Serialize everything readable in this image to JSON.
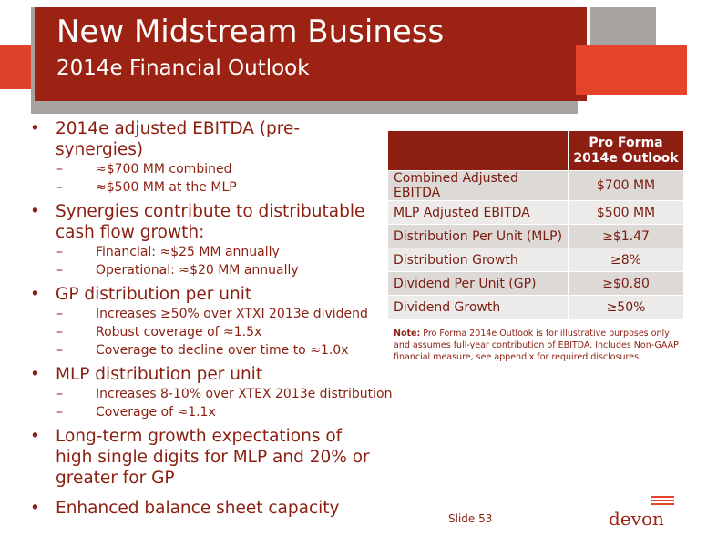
{
  "header": {
    "title": "New Midstream Business",
    "subtitle": "2014e Financial Outlook"
  },
  "bullets": [
    {
      "text": "2014e adjusted EBITDA (pre-synergies)",
      "subs": [
        "≈$700 MM combined",
        "≈$500 MM at the MLP"
      ]
    },
    {
      "text": "Synergies contribute to distributable cash flow growth:",
      "subs": [
        "Financial: ≈$25 MM annually",
        "Operational: ≈$20 MM annually"
      ]
    },
    {
      "text": "GP distribution per unit",
      "subs": [
        "Increases ≥50% over XTXI 2013e dividend",
        "Robust coverage of ≈1.5x",
        "Coverage to decline over time to ≈1.0x"
      ]
    },
    {
      "text": "MLP distribution per unit",
      "subs": [
        "Increases 8-10% over XTEX 2013e distribution",
        "Coverage of ≈1.1x"
      ]
    },
    {
      "text": "Long-term growth expectations of high single digits for MLP and 20% or greater for GP",
      "subs": []
    },
    {
      "text": "Enhanced balance sheet capacity",
      "subs": []
    }
  ],
  "table": {
    "header_line1": "Pro Forma",
    "header_line2": "2014e Outlook",
    "rows": [
      {
        "label": "Combined Adjusted EBITDA",
        "value": "$700 MM"
      },
      {
        "label": "MLP Adjusted EBITDA",
        "value": "$500 MM"
      },
      {
        "label": "Distribution Per Unit (MLP)",
        "value": "≥$1.47"
      },
      {
        "label": "Distribution Growth",
        "value": "≥8%"
      },
      {
        "label": "Dividend Per Unit (GP)",
        "value": "≥$0.80"
      },
      {
        "label": "Dividend Growth",
        "value": "≥50%"
      }
    ]
  },
  "note": {
    "label": "Note:",
    "text": "Pro Forma 2014e Outlook is for illustrative purposes only and assumes full-year contribution of EBITDA. Includes Non-GAAP financial measure, see appendix for required disclosures."
  },
  "footer": {
    "slide": "Slide 53",
    "logo_text": "devon"
  },
  "colors": {
    "dark_red": "#9c2314",
    "accent_red": "#e6432c",
    "gray": "#a7a3a1",
    "text": "#8a1f11"
  }
}
